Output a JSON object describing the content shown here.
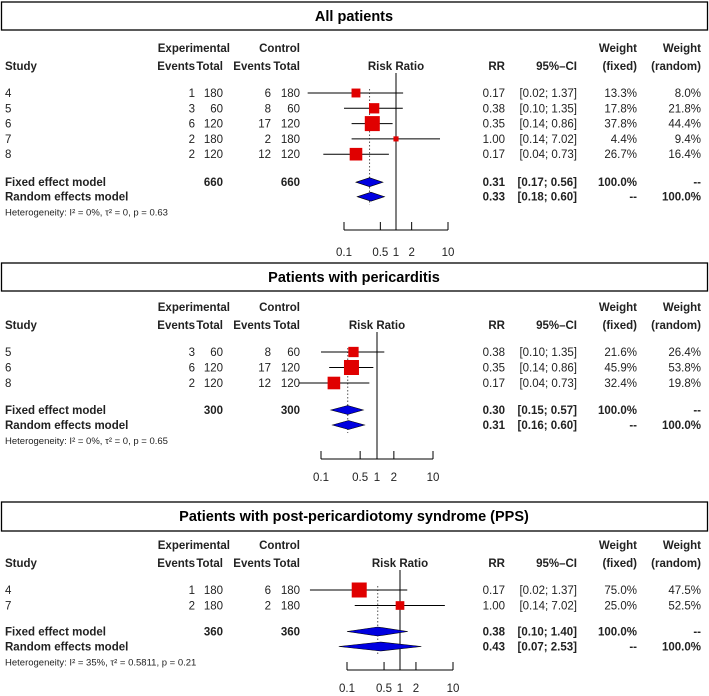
{
  "headers": {
    "study": "Study",
    "experimental": "Experimental",
    "control": "Control",
    "events": "Events",
    "total": "Total",
    "risk_ratio": "Risk Ratio",
    "rr": "RR",
    "ci": "95%–CI",
    "weight": "Weight",
    "fixed": "(fixed)",
    "random": "(random)"
  },
  "colors": {
    "square": "#e00000",
    "diamond": "#0000e0",
    "line": "#000000"
  },
  "chart_data": [
    {
      "type": "forest",
      "title": "All patients",
      "xscale": "log",
      "ticks": [
        "0.1",
        "0.5",
        "1",
        "2",
        "10"
      ],
      "xlim": [
        0.1,
        10
      ],
      "studies": [
        {
          "study": "4",
          "exp_events": "1",
          "exp_total": "180",
          "ctrl_events": "6",
          "ctrl_total": "180",
          "rr": 0.17,
          "lo": 0.02,
          "hi": 1.37,
          "rr_text": "0.17",
          "ci_text": "[0.02; 1.37]",
          "w_fixed": "13.3%",
          "w_random": "8.0%"
        },
        {
          "study": "5",
          "exp_events": "3",
          "exp_total": "60",
          "ctrl_events": "8",
          "ctrl_total": "60",
          "rr": 0.38,
          "lo": 0.1,
          "hi": 1.35,
          "rr_text": "0.38",
          "ci_text": "[0.10; 1.35]",
          "w_fixed": "17.8%",
          "w_random": "21.8%"
        },
        {
          "study": "6",
          "exp_events": "6",
          "exp_total": "120",
          "ctrl_events": "17",
          "ctrl_total": "120",
          "rr": 0.35,
          "lo": 0.14,
          "hi": 0.86,
          "rr_text": "0.35",
          "ci_text": "[0.14; 0.86]",
          "w_fixed": "37.8%",
          "w_random": "44.4%"
        },
        {
          "study": "7",
          "exp_events": "2",
          "exp_total": "180",
          "ctrl_events": "2",
          "ctrl_total": "180",
          "rr": 1.0,
          "lo": 0.14,
          "hi": 7.02,
          "rr_text": "1.00",
          "ci_text": "[0.14; 7.02]",
          "w_fixed": "4.4%",
          "w_random": "9.4%"
        },
        {
          "study": "8",
          "exp_events": "2",
          "exp_total": "120",
          "ctrl_events": "12",
          "ctrl_total": "120",
          "rr": 0.17,
          "lo": 0.04,
          "hi": 0.73,
          "rr_text": "0.17",
          "ci_text": "[0.04; 0.73]",
          "w_fixed": "26.7%",
          "w_random": "16.4%"
        }
      ],
      "fixed": {
        "label": "Fixed effect model",
        "exp_total": "660",
        "ctrl_total": "660",
        "rr": 0.31,
        "lo": 0.17,
        "hi": 0.56,
        "rr_text": "0.31",
        "ci_text": "[0.17; 0.56]",
        "w_fixed": "100.0%",
        "w_random": "--"
      },
      "random": {
        "label": "Random effects model",
        "rr": 0.33,
        "lo": 0.18,
        "hi": 0.6,
        "rr_text": "0.33",
        "ci_text": "[0.18; 0.60]",
        "w_fixed": "--",
        "w_random": "100.0%"
      },
      "heterogeneity": "Heterogeneity: I² = 0%, τ² = 0, p = 0.63"
    },
    {
      "type": "forest",
      "title": "Patients with pericarditis",
      "xscale": "log",
      "ticks": [
        "0.1",
        "0.5",
        "1",
        "2",
        "10"
      ],
      "xlim": [
        0.1,
        10
      ],
      "studies": [
        {
          "study": "5",
          "exp_events": "3",
          "exp_total": "60",
          "ctrl_events": "8",
          "ctrl_total": "60",
          "rr": 0.38,
          "lo": 0.1,
          "hi": 1.35,
          "rr_text": "0.38",
          "ci_text": "[0.10; 1.35]",
          "w_fixed": "21.6%",
          "w_random": "26.4%"
        },
        {
          "study": "6",
          "exp_events": "6",
          "exp_total": "120",
          "ctrl_events": "17",
          "ctrl_total": "120",
          "rr": 0.35,
          "lo": 0.14,
          "hi": 0.86,
          "rr_text": "0.35",
          "ci_text": "[0.14; 0.86]",
          "w_fixed": "45.9%",
          "w_random": "53.8%"
        },
        {
          "study": "8",
          "exp_events": "2",
          "exp_total": "120",
          "ctrl_events": "12",
          "ctrl_total": "120",
          "rr": 0.17,
          "lo": 0.04,
          "hi": 0.73,
          "rr_text": "0.17",
          "ci_text": "[0.04; 0.73]",
          "w_fixed": "32.4%",
          "w_random": "19.8%"
        }
      ],
      "fixed": {
        "label": "Fixed effect model",
        "exp_total": "300",
        "ctrl_total": "300",
        "rr": 0.3,
        "lo": 0.15,
        "hi": 0.57,
        "rr_text": "0.30",
        "ci_text": "[0.15; 0.57]",
        "w_fixed": "100.0%",
        "w_random": "--"
      },
      "random": {
        "label": "Random effects model",
        "rr": 0.31,
        "lo": 0.16,
        "hi": 0.6,
        "rr_text": "0.31",
        "ci_text": "[0.16; 0.60]",
        "w_fixed": "--",
        "w_random": "100.0%"
      },
      "heterogeneity": "Heterogeneity: I² = 0%, τ² = 0, p = 0.65"
    },
    {
      "type": "forest",
      "title": "Patients with post-pericardiotomy syndrome (PPS)",
      "xscale": "log",
      "ticks": [
        "0.1",
        "0.5",
        "1",
        "2",
        "10"
      ],
      "xlim": [
        0.1,
        10
      ],
      "studies": [
        {
          "study": "4",
          "exp_events": "1",
          "exp_total": "180",
          "ctrl_events": "6",
          "ctrl_total": "180",
          "rr": 0.17,
          "lo": 0.02,
          "hi": 1.37,
          "rr_text": "0.17",
          "ci_text": "[0.02; 1.37]",
          "w_fixed": "75.0%",
          "w_random": "47.5%"
        },
        {
          "study": "7",
          "exp_events": "2",
          "exp_total": "180",
          "ctrl_events": "2",
          "ctrl_total": "180",
          "rr": 1.0,
          "lo": 0.14,
          "hi": 7.02,
          "rr_text": "1.00",
          "ci_text": "[0.14; 7.02]",
          "w_fixed": "25.0%",
          "w_random": "52.5%"
        }
      ],
      "fixed": {
        "label": "Fixed effect model",
        "exp_total": "360",
        "ctrl_total": "360",
        "rr": 0.38,
        "lo": 0.1,
        "hi": 1.4,
        "rr_text": "0.38",
        "ci_text": "[0.10; 1.40]",
        "w_fixed": "100.0%",
        "w_random": "--"
      },
      "random": {
        "label": "Random effects model",
        "rr": 0.43,
        "lo": 0.07,
        "hi": 2.53,
        "rr_text": "0.43",
        "ci_text": "[0.07; 2.53]",
        "w_fixed": "--",
        "w_random": "100.0%"
      },
      "heterogeneity": "Heterogeneity: I² = 35%, τ² = 0.5811, p = 0.21"
    }
  ]
}
